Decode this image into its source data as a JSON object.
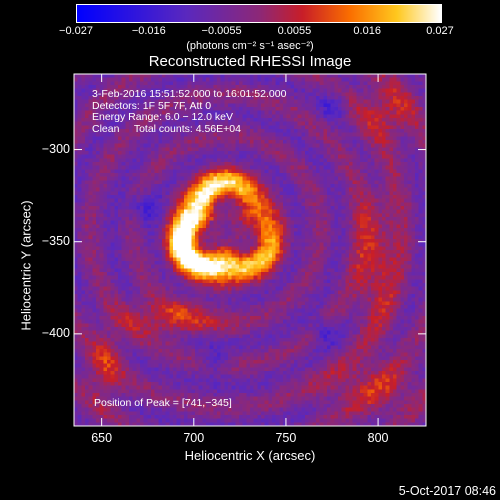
{
  "colorbar": {
    "tick_labels": [
      "−0.027",
      "−0.016",
      "−0.0055",
      "0.0055",
      "0.016",
      "0.027"
    ],
    "units": "(photons cm⁻² s⁻¹ asec⁻²)",
    "range": [
      -0.027,
      0.027
    ]
  },
  "title": "Reconstructed RHESSI Image",
  "info": {
    "time": "3-Feb-2016 15:51:52.000 to 16:01:52.000",
    "detectors": "Detectors: 1F 5F 7F, Att 0",
    "energy": "Energy Range: 6.0 − 12.0 keV",
    "clean": "Clean     Total counts: 4.56E+04",
    "peak": "Position of Peak = [741,−345]"
  },
  "x_axis": {
    "label": "Heliocentric X (arcsec)",
    "ticks": [
      {
        "value": 650,
        "label": "650"
      },
      {
        "value": 700,
        "label": "700"
      },
      {
        "value": 750,
        "label": "750"
      },
      {
        "value": 800,
        "label": "800"
      }
    ],
    "range": [
      635,
      826
    ]
  },
  "y_axis": {
    "label": "Heliocentric Y (arcsec)",
    "ticks": [
      {
        "value": -300,
        "label": "−300"
      },
      {
        "value": -350,
        "label": "−350"
      },
      {
        "value": -400,
        "label": "−400"
      }
    ],
    "range": [
      -450,
      -259
    ]
  },
  "footer_date": "5-Oct-2017 08:46",
  "colors": {
    "background": "#000000",
    "axes": "#ffffff"
  }
}
